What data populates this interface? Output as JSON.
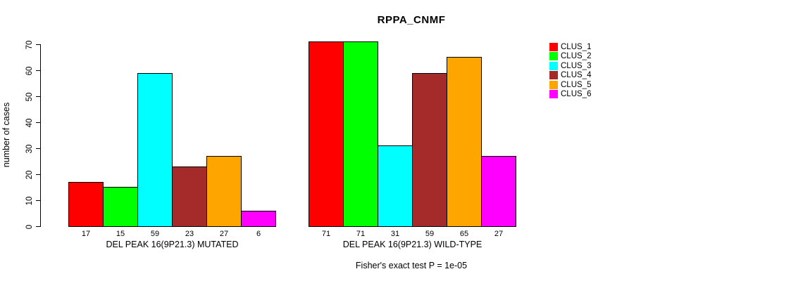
{
  "chart_data": {
    "type": "bar",
    "title": "RPPA_CNMF",
    "ylabel": "number of cases",
    "xlabel": "",
    "ylim": [
      0,
      70
    ],
    "yticks": [
      0,
      10,
      20,
      30,
      40,
      50,
      60,
      70
    ],
    "grid": false,
    "legend_position": "right",
    "clusters": [
      {
        "name": "CLUS_1",
        "color": "#FF0000"
      },
      {
        "name": "CLUS_2",
        "color": "#00FF00"
      },
      {
        "name": "CLUS_3",
        "color": "#00FFFF"
      },
      {
        "name": "CLUS_4",
        "color": "#A52A2A"
      },
      {
        "name": "CLUS_5",
        "color": "#FFA500"
      },
      {
        "name": "CLUS_6",
        "color": "#FF00FF"
      }
    ],
    "groups": [
      {
        "label": "DEL PEAK 16(9P21.3) MUTATED",
        "values": [
          17,
          15,
          59,
          23,
          27,
          6
        ]
      },
      {
        "label": "DEL PEAK 16(9P21.3) WILD-TYPE",
        "values": [
          71,
          71,
          31,
          59,
          65,
          27
        ]
      }
    ],
    "annotation": "Fisher's exact test P = 1e-05"
  }
}
